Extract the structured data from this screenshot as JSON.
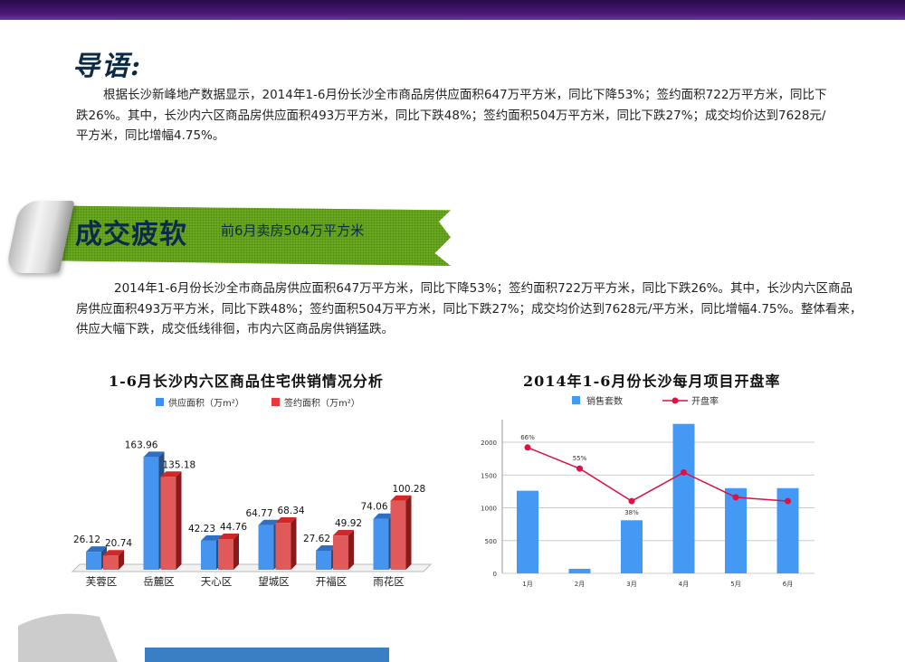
{
  "intro": {
    "title": "导语:",
    "paragraph": "根据长沙新峰地产数据显示，2014年1-6月份长沙全市商品房供应面积647万平方米，同比下降53%；签约面积722万平方米，同比下跌26%。其中，长沙内六区商品房供应面积493万平方米，同比下跌48%；签约面积504万平方米，同比下跌27%；成交均价达到7628元/平方米，同比增幅4.75%。"
  },
  "section": {
    "title": "成交疲软",
    "subtitle": "前6月卖房504万平方米",
    "paragraph": "2014年1-6月份长沙全市商品房供应面积647万平方米，同比下降53%；签约面积722万平方米，同比下跌26%。其中，长沙内六区商品房供应面积493万平方米，同比下跌48%；签约面积504万平方米，同比下跌27%；成交均价达到7628元/平方米，同比增幅4.75%。整体看来，供应大幅下跌，成交低线徘徊，市内六区商品房供销猛跌。"
  },
  "colors": {
    "accent_green": "#6fb022",
    "supply": "#4595f0",
    "sign": "#e05a5a",
    "line": "#dd1144",
    "bar": "#4499f5"
  },
  "chart_data": [
    {
      "type": "bar",
      "title": "1-6月长沙内六区商品住宅供销情况分析",
      "style": "3d",
      "legend_position": "top",
      "categories": [
        "芙蓉区",
        "岳麓区",
        "天心区",
        "望城区",
        "开福区",
        "雨花区"
      ],
      "series": [
        {
          "name": "供应面积（万m²）",
          "values": [
            26.12,
            163.96,
            42.23,
            64.77,
            27.62,
            74.06
          ],
          "labels": [
            "26.12",
            "163.96",
            "42.23",
            "64.77",
            "27.62",
            "74.06"
          ]
        },
        {
          "name": "签约面积（万m²）",
          "values": [
            20.74,
            135.18,
            44.76,
            68.34,
            49.92,
            100.28
          ],
          "labels": [
            "20.74",
            "135.18",
            "44.76",
            "68.34",
            "49.92",
            "100.28"
          ]
        }
      ]
    },
    {
      "type": "bar+line",
      "title": "2014年1-6月份长沙每月项目开盘率",
      "legend_position": "top",
      "grid": true,
      "categories": [
        "1月",
        "2月",
        "3月",
        "4月",
        "5月",
        "6月"
      ],
      "ylim": [
        0,
        2300
      ],
      "yticks": [
        "0",
        "500",
        "1000",
        "1500",
        "2000"
      ],
      "series": [
        {
          "name": "销售套数",
          "type": "bar",
          "values": [
            1260,
            70,
            810,
            2280,
            1300,
            1300
          ]
        },
        {
          "name": "开盘率",
          "type": "line",
          "values": [
            66,
            55,
            38,
            53,
            40,
            38
          ],
          "point_labels": [
            "66%",
            "55%",
            "38%",
            "",
            "",
            ""
          ]
        }
      ]
    }
  ]
}
